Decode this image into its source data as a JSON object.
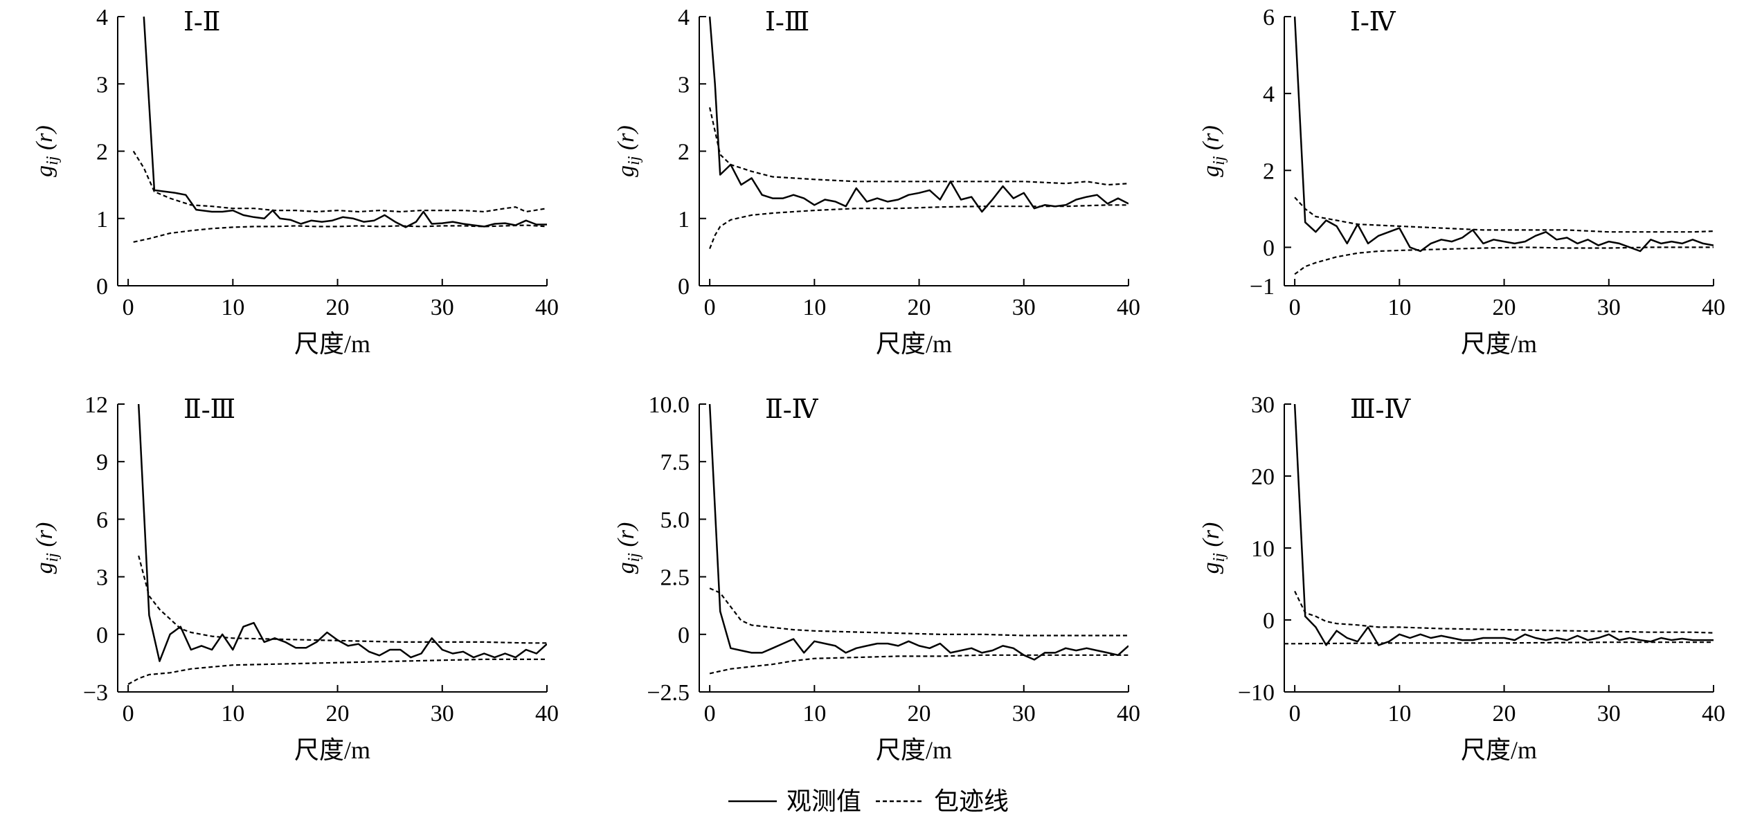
{
  "chart_data": [
    {
      "type": "line",
      "title": "Ⅰ-Ⅱ",
      "xlabel": "尺度/m",
      "ylabel": "gij (r)",
      "xlim": [
        -1,
        40
      ],
      "ylim": [
        0,
        4
      ],
      "xticks": [
        0,
        10,
        20,
        30,
        40
      ],
      "yticks": [
        0,
        1,
        2,
        3,
        4
      ],
      "ytick_labels": [
        "0",
        "1",
        "2",
        "3",
        "4"
      ],
      "x": [
        1.5,
        2.5,
        4.5,
        5.5,
        6.5,
        8,
        9,
        10,
        11,
        12,
        13,
        13.8,
        14.5,
        15.5,
        16.5,
        17.5,
        18.5,
        19.5,
        20.5,
        21.5,
        22.5,
        23.5,
        24.5,
        25.5,
        26.5,
        27.5,
        28.2,
        29,
        30,
        31,
        32,
        33,
        34,
        35,
        36,
        37,
        38,
        39,
        40
      ],
      "series": [
        {
          "name": "观测值",
          "style": "solid",
          "values": [
            4.0,
            1.42,
            1.38,
            1.35,
            1.13,
            1.1,
            1.1,
            1.12,
            1.05,
            1.02,
            1.0,
            1.12,
            1.0,
            0.98,
            0.92,
            0.97,
            0.95,
            0.97,
            1.02,
            1.0,
            0.95,
            0.97,
            1.05,
            0.95,
            0.87,
            0.95,
            1.1,
            0.92,
            0.93,
            0.95,
            0.92,
            0.9,
            0.88,
            0.92,
            0.93,
            0.9,
            0.97,
            0.91,
            0.91
          ]
        },
        {
          "name": "包迹线",
          "style": "dashed",
          "x": [
            0.5,
            1.5,
            2.5,
            4,
            6,
            8,
            10,
            12,
            14,
            16,
            18,
            20,
            22,
            24,
            26,
            28,
            30,
            32,
            34,
            36,
            37,
            38,
            40
          ],
          "values": [
            2.0,
            1.75,
            1.4,
            1.3,
            1.2,
            1.18,
            1.15,
            1.15,
            1.12,
            1.12,
            1.1,
            1.12,
            1.1,
            1.12,
            1.1,
            1.12,
            1.12,
            1.12,
            1.1,
            1.15,
            1.17,
            1.1,
            1.15
          ]
        },
        {
          "name": "包迹线",
          "style": "dashed",
          "x": [
            0.5,
            2,
            4,
            6,
            8,
            10,
            12,
            14,
            16,
            18,
            20,
            22,
            24,
            26,
            28,
            30,
            32,
            34,
            36,
            38,
            40
          ],
          "values": [
            0.65,
            0.7,
            0.78,
            0.82,
            0.85,
            0.87,
            0.88,
            0.88,
            0.89,
            0.88,
            0.88,
            0.89,
            0.88,
            0.89,
            0.88,
            0.89,
            0.89,
            0.88,
            0.89,
            0.9,
            0.88
          ]
        }
      ]
    },
    {
      "type": "line",
      "title": "Ⅰ-Ⅲ",
      "xlabel": "尺度/m",
      "ylabel": "gij (r)",
      "xlim": [
        -1,
        40
      ],
      "ylim": [
        0,
        4
      ],
      "xticks": [
        0,
        10,
        20,
        30,
        40
      ],
      "yticks": [
        0,
        1,
        2,
        3,
        4
      ],
      "ytick_labels": [
        "0",
        "1",
        "2",
        "3",
        "4"
      ],
      "x": [
        0,
        0.5,
        1,
        2,
        3,
        4,
        5,
        6,
        7,
        8,
        9,
        10,
        11,
        12,
        13,
        14,
        15,
        16,
        17,
        18,
        19,
        20,
        21,
        22,
        23,
        24,
        25,
        26,
        27,
        28,
        29,
        30,
        31,
        32,
        33,
        34,
        35,
        36,
        37,
        38,
        39,
        40
      ],
      "series": [
        {
          "name": "观测值",
          "style": "solid",
          "values": [
            4.0,
            3.0,
            1.65,
            1.8,
            1.5,
            1.6,
            1.35,
            1.3,
            1.3,
            1.35,
            1.3,
            1.2,
            1.28,
            1.25,
            1.18,
            1.45,
            1.25,
            1.3,
            1.25,
            1.28,
            1.35,
            1.38,
            1.42,
            1.28,
            1.55,
            1.28,
            1.32,
            1.1,
            1.28,
            1.48,
            1.3,
            1.38,
            1.15,
            1.2,
            1.18,
            1.2,
            1.28,
            1.32,
            1.35,
            1.22,
            1.3,
            1.22
          ]
        },
        {
          "name": "包迹线",
          "style": "dashed",
          "x": [
            0,
            0.5,
            1,
            2,
            4,
            6,
            8,
            10,
            14,
            18,
            22,
            26,
            30,
            34,
            36,
            38,
            40
          ],
          "values": [
            2.65,
            2.3,
            1.95,
            1.8,
            1.7,
            1.62,
            1.6,
            1.58,
            1.55,
            1.55,
            1.55,
            1.55,
            1.55,
            1.52,
            1.55,
            1.5,
            1.52
          ]
        },
        {
          "name": "包迹线",
          "style": "dashed",
          "x": [
            0,
            0.5,
            1,
            2,
            4,
            6,
            8,
            10,
            14,
            18,
            22,
            26,
            30,
            34,
            38,
            40
          ],
          "values": [
            0.55,
            0.75,
            0.88,
            0.98,
            1.05,
            1.08,
            1.1,
            1.12,
            1.15,
            1.15,
            1.17,
            1.18,
            1.18,
            1.18,
            1.2,
            1.2
          ]
        }
      ]
    },
    {
      "type": "line",
      "title": "Ⅰ-Ⅳ",
      "xlabel": "尺度/m",
      "ylabel": "gij (r)",
      "xlim": [
        -1,
        40
      ],
      "ylim": [
        -1,
        6
      ],
      "xticks": [
        0,
        10,
        20,
        30,
        40
      ],
      "yticks": [
        -1,
        0,
        2,
        4,
        6
      ],
      "ytick_labels": [
        "−1",
        "0",
        "2",
        "4",
        "6"
      ],
      "x": [
        0,
        1,
        2,
        3,
        4,
        5,
        6,
        7,
        8,
        9,
        10,
        11,
        12,
        13,
        14,
        15,
        16,
        17,
        18,
        19,
        20,
        21,
        22,
        23,
        24,
        25,
        26,
        27,
        28,
        29,
        30,
        31,
        32,
        33,
        34,
        35,
        36,
        37,
        38,
        39,
        40
      ],
      "series": [
        {
          "name": "观测值",
          "style": "solid",
          "values": [
            6.0,
            0.65,
            0.4,
            0.7,
            0.55,
            0.1,
            0.6,
            0.1,
            0.3,
            0.4,
            0.5,
            0.0,
            -0.1,
            0.1,
            0.2,
            0.15,
            0.25,
            0.45,
            0.1,
            0.2,
            0.15,
            0.1,
            0.15,
            0.3,
            0.4,
            0.2,
            0.25,
            0.1,
            0.2,
            0.05,
            0.15,
            0.1,
            0.0,
            -0.1,
            0.2,
            0.1,
            0.15,
            0.1,
            0.2,
            0.1,
            0.05
          ]
        },
        {
          "name": "包迹线",
          "style": "dashed",
          "x": [
            0,
            1,
            2,
            4,
            6,
            10,
            14,
            18,
            22,
            26,
            30,
            34,
            38,
            40
          ],
          "values": [
            1.3,
            1.0,
            0.8,
            0.7,
            0.6,
            0.55,
            0.5,
            0.45,
            0.45,
            0.45,
            0.4,
            0.4,
            0.4,
            0.42
          ]
        },
        {
          "name": "包迹线",
          "style": "dashed",
          "x": [
            0,
            1,
            2,
            4,
            6,
            8,
            10,
            14,
            18,
            22,
            26,
            30,
            34,
            38,
            40
          ],
          "values": [
            -0.7,
            -0.5,
            -0.4,
            -0.25,
            -0.15,
            -0.1,
            -0.08,
            -0.05,
            -0.02,
            0.0,
            -0.02,
            -0.02,
            0.0,
            0.0,
            0.0
          ]
        }
      ]
    },
    {
      "type": "line",
      "title": "Ⅱ-Ⅲ",
      "xlabel": "尺度/m",
      "ylabel": "gij (r)",
      "xlim": [
        -1,
        40
      ],
      "ylim": [
        -3,
        12
      ],
      "xticks": [
        0,
        10,
        20,
        30,
        40
      ],
      "yticks": [
        -3,
        0,
        3,
        6,
        9,
        12
      ],
      "ytick_labels": [
        "−3",
        "0",
        "3",
        "6",
        "9",
        "12"
      ],
      "x": [
        1,
        2,
        3,
        4,
        5,
        6,
        7,
        8,
        9,
        10,
        11,
        12,
        13,
        14,
        15,
        16,
        17,
        18,
        19,
        20,
        21,
        22,
        23,
        24,
        25,
        26,
        27,
        28,
        29,
        30,
        31,
        32,
        33,
        34,
        35,
        36,
        37,
        38,
        39,
        40
      ],
      "series": [
        {
          "name": "观测值",
          "style": "solid",
          "values": [
            12.0,
            1.0,
            -1.4,
            0.0,
            0.4,
            -0.8,
            -0.6,
            -0.8,
            0.0,
            -0.8,
            0.4,
            0.6,
            -0.4,
            -0.2,
            -0.4,
            -0.7,
            -0.7,
            -0.4,
            0.1,
            -0.3,
            -0.6,
            -0.5,
            -0.9,
            -1.1,
            -0.8,
            -0.8,
            -1.2,
            -1.0,
            -0.2,
            -0.8,
            -1.0,
            -0.9,
            -1.2,
            -1.0,
            -1.2,
            -1.0,
            -1.2,
            -0.8,
            -1.0,
            -0.5
          ]
        },
        {
          "name": "包迹线",
          "style": "dashed",
          "x": [
            1,
            2,
            3,
            4,
            5,
            6,
            8,
            10,
            14,
            18,
            22,
            26,
            30,
            34,
            38,
            40
          ],
          "values": [
            4.1,
            2.0,
            1.3,
            0.8,
            0.3,
            0.1,
            -0.1,
            -0.2,
            -0.25,
            -0.3,
            -0.35,
            -0.4,
            -0.4,
            -0.4,
            -0.45,
            -0.45
          ]
        },
        {
          "name": "包迹线",
          "style": "dashed",
          "x": [
            0,
            1,
            2,
            4,
            6,
            8,
            10,
            14,
            18,
            22,
            26,
            30,
            34,
            38,
            40
          ],
          "values": [
            -2.6,
            -2.3,
            -2.1,
            -2.0,
            -1.8,
            -1.7,
            -1.6,
            -1.55,
            -1.5,
            -1.45,
            -1.4,
            -1.35,
            -1.3,
            -1.3,
            -1.3
          ]
        }
      ]
    },
    {
      "type": "line",
      "title": "Ⅱ-Ⅳ",
      "xlabel": "尺度/m",
      "ylabel": "gij (r)",
      "xlim": [
        -1,
        40
      ],
      "ylim": [
        -2.5,
        10
      ],
      "xticks": [
        0,
        10,
        20,
        30,
        40
      ],
      "yticks": [
        -2.5,
        0,
        2.5,
        5,
        7.5,
        10
      ],
      "ytick_labels": [
        "−2.5",
        "0",
        "2.5",
        "5.0",
        "7.5",
        "10.0"
      ],
      "x": [
        0,
        1,
        2,
        3,
        4,
        5,
        6,
        7,
        8,
        9,
        10,
        11,
        12,
        13,
        14,
        15,
        16,
        17,
        18,
        19,
        20,
        21,
        22,
        23,
        24,
        25,
        26,
        27,
        28,
        29,
        30,
        31,
        32,
        33,
        34,
        35,
        36,
        37,
        38,
        39,
        40
      ],
      "series": [
        {
          "name": "观测值",
          "style": "solid",
          "values": [
            10.0,
            1.0,
            -0.6,
            -0.7,
            -0.8,
            -0.8,
            -0.6,
            -0.4,
            -0.2,
            -0.8,
            -0.3,
            -0.4,
            -0.5,
            -0.8,
            -0.6,
            -0.5,
            -0.4,
            -0.4,
            -0.5,
            -0.3,
            -0.5,
            -0.6,
            -0.4,
            -0.8,
            -0.7,
            -0.6,
            -0.8,
            -0.7,
            -0.5,
            -0.6,
            -0.9,
            -1.1,
            -0.8,
            -0.8,
            -0.6,
            -0.7,
            -0.6,
            -0.7,
            -0.8,
            -0.9,
            -0.5
          ]
        },
        {
          "name": "包迹线",
          "style": "dashed",
          "x": [
            0,
            1,
            2,
            3,
            4,
            6,
            8,
            10,
            14,
            18,
            22,
            26,
            30,
            34,
            38,
            40
          ],
          "values": [
            2.0,
            1.8,
            1.2,
            0.6,
            0.4,
            0.3,
            0.2,
            0.15,
            0.1,
            0.05,
            0.0,
            0.0,
            -0.05,
            -0.05,
            -0.05,
            -0.05
          ]
        },
        {
          "name": "包迹线",
          "style": "dashed",
          "x": [
            0,
            1,
            2,
            4,
            6,
            8,
            10,
            14,
            18,
            22,
            26,
            30,
            34,
            38,
            40
          ],
          "values": [
            -1.7,
            -1.6,
            -1.5,
            -1.4,
            -1.3,
            -1.15,
            -1.05,
            -1.0,
            -0.95,
            -0.95,
            -0.9,
            -0.9,
            -0.9,
            -0.9,
            -0.9
          ]
        }
      ]
    },
    {
      "type": "line",
      "title": "Ⅲ-Ⅳ",
      "xlabel": "尺度/m",
      "ylabel": "gij (r)",
      "xlim": [
        -1,
        40
      ],
      "ylim": [
        -10,
        30
      ],
      "xticks": [
        0,
        10,
        20,
        30,
        40
      ],
      "yticks": [
        -10,
        0,
        10,
        20,
        30
      ],
      "ytick_labels": [
        "−10",
        "0",
        "10",
        "20",
        "30"
      ],
      "x": [
        0,
        1,
        2,
        3,
        4,
        5,
        6,
        7,
        8,
        9,
        10,
        11,
        12,
        13,
        14,
        15,
        16,
        17,
        18,
        19,
        20,
        21,
        22,
        23,
        24,
        25,
        26,
        27,
        28,
        29,
        30,
        31,
        32,
        33,
        34,
        35,
        36,
        37,
        38,
        39,
        40
      ],
      "series": [
        {
          "name": "观测值",
          "style": "solid",
          "values": [
            30.0,
            0.5,
            -1.0,
            -3.5,
            -1.5,
            -2.5,
            -3.0,
            -1.0,
            -3.5,
            -3.0,
            -2.0,
            -2.5,
            -2.0,
            -2.5,
            -2.2,
            -2.5,
            -2.8,
            -2.8,
            -2.5,
            -2.5,
            -2.5,
            -2.8,
            -2.0,
            -2.5,
            -2.8,
            -2.5,
            -2.8,
            -2.2,
            -2.8,
            -2.5,
            -2.0,
            -2.8,
            -2.5,
            -2.8,
            -3.0,
            -2.5,
            -2.8,
            -2.6,
            -2.8,
            -2.8,
            -2.8
          ]
        },
        {
          "name": "包迹线",
          "style": "dashed",
          "x": [
            0,
            1,
            2,
            3,
            4,
            6,
            8,
            10,
            14,
            18,
            22,
            26,
            30,
            34,
            38,
            40
          ],
          "values": [
            4.0,
            1.0,
            0.5,
            -0.2,
            -0.5,
            -0.7,
            -1.0,
            -1.0,
            -1.2,
            -1.3,
            -1.4,
            -1.5,
            -1.6,
            -1.7,
            -1.7,
            -1.8
          ]
        },
        {
          "name": "包迹线",
          "style": "dashed",
          "x": [
            -1,
            0,
            10,
            20,
            30,
            40
          ],
          "values": [
            -3.3,
            -3.3,
            -3.2,
            -3.2,
            -3.1,
            -3.1
          ]
        }
      ]
    }
  ],
  "legend": {
    "items": [
      {
        "label": "观测值",
        "style": "solid"
      },
      {
        "label": "包迹线",
        "style": "dashed"
      }
    ]
  }
}
